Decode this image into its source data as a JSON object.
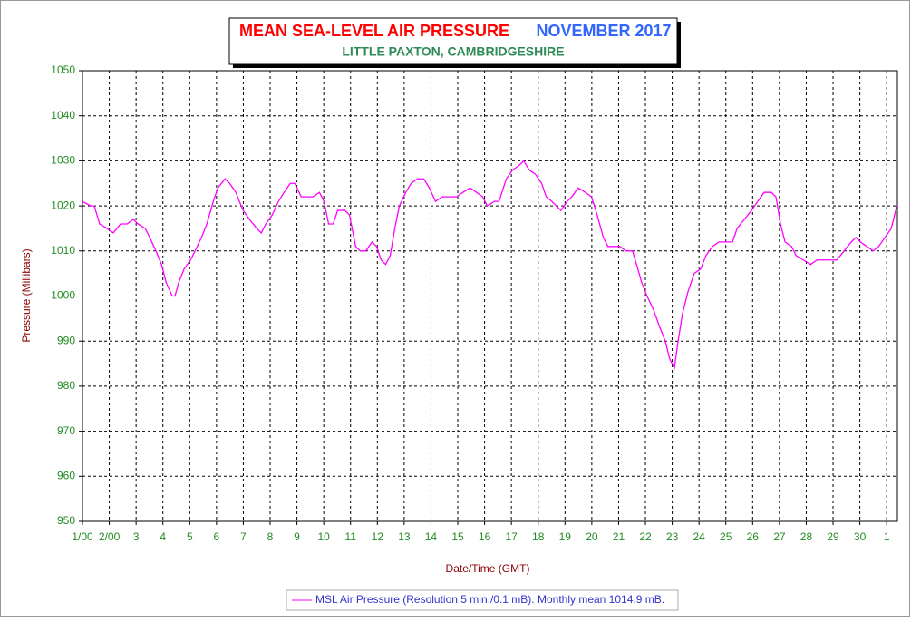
{
  "chart_data": {
    "type": "line",
    "title": "MEAN SEA-LEVEL AIR PRESSURE",
    "title_month": "NOVEMBER 2017",
    "subtitle": "LITTLE PAXTON, CAMBRIDGESHIRE",
    "x_label": "Date/Time (GMT)",
    "y_label": "Pressure (Millibars)",
    "grid": true,
    "xlim": [
      1,
      31.4
    ],
    "ylim": [
      950,
      1050
    ],
    "xticks": [
      {
        "value": 1,
        "label": "1/00"
      },
      {
        "value": 2,
        "label": "2/00"
      },
      3,
      4,
      5,
      6,
      7,
      8,
      9,
      10,
      11,
      12,
      13,
      14,
      15,
      16,
      17,
      18,
      19,
      20,
      21,
      22,
      23,
      24,
      25,
      26,
      27,
      28,
      29,
      30,
      {
        "value": 31,
        "label": "1"
      }
    ],
    "yticks": [
      950,
      960,
      970,
      980,
      990,
      1000,
      1010,
      1020,
      1030,
      1040,
      1050
    ],
    "x": [
      1.0,
      1.3,
      1.44,
      1.64,
      1.91,
      2.15,
      2.42,
      2.66,
      2.9,
      3.07,
      3.34,
      3.51,
      3.74,
      3.95,
      4.12,
      4.35,
      4.45,
      4.59,
      4.79,
      5.03,
      5.2,
      5.44,
      5.64,
      5.88,
      6.05,
      6.32,
      6.49,
      6.72,
      6.99,
      7.23,
      7.5,
      7.67,
      7.84,
      8.08,
      8.31,
      8.52,
      8.75,
      8.92,
      9.16,
      9.43,
      9.6,
      9.84,
      10.01,
      10.18,
      10.35,
      10.52,
      10.79,
      10.96,
      11.19,
      11.36,
      11.57,
      11.8,
      11.97,
      12.14,
      12.31,
      12.48,
      12.65,
      12.82,
      13.06,
      13.26,
      13.5,
      13.73,
      13.94,
      14.17,
      14.41,
      14.68,
      14.95,
      15.19,
      15.46,
      15.7,
      15.93,
      16.1,
      16.37,
      16.54,
      16.81,
      17.05,
      17.29,
      17.46,
      17.66,
      17.9,
      18.13,
      18.3,
      18.51,
      18.68,
      18.85,
      19.08,
      19.25,
      19.49,
      19.76,
      19.99,
      20.2,
      20.43,
      20.6,
      20.84,
      21.04,
      21.28,
      21.52,
      21.72,
      21.86,
      22.06,
      22.3,
      22.54,
      22.74,
      22.91,
      23.08,
      23.22,
      23.38,
      23.59,
      23.82,
      24.06,
      24.26,
      24.5,
      24.74,
      25.01,
      25.25,
      25.42,
      25.69,
      25.96,
      26.19,
      26.43,
      26.7,
      26.87,
      27.04,
      27.21,
      27.45,
      27.62,
      27.89,
      28.16,
      28.4,
      28.63,
      28.9,
      29.14,
      29.41,
      29.68,
      29.85,
      30.02,
      30.26,
      30.5,
      30.7,
      30.94,
      31.17,
      31.38
    ],
    "series": [
      {
        "name": "MSL Air Pressure (Resolution 5 min./0.1 mB). Monthly mean 1014.9 mB.",
        "color": "#ff00ff",
        "values": [
          1021,
          1020,
          1020,
          1016,
          1015,
          1014,
          1016,
          1016,
          1017,
          1016,
          1015,
          1013,
          1010,
          1007,
          1003,
          1000,
          1000,
          1003,
          1006,
          1008,
          1010,
          1013,
          1016,
          1021,
          1024,
          1026,
          1025,
          1023,
          1019,
          1017,
          1015,
          1014,
          1016,
          1018,
          1021,
          1023,
          1025,
          1025,
          1022,
          1022,
          1022,
          1023,
          1021,
          1016,
          1016,
          1019,
          1019,
          1018,
          1011,
          1010,
          1010,
          1012,
          1011,
          1008,
          1007,
          1009,
          1015,
          1020,
          1023,
          1025,
          1026,
          1026,
          1024,
          1021,
          1022,
          1022,
          1022,
          1023,
          1024,
          1023,
          1022,
          1020,
          1021,
          1021,
          1026,
          1028,
          1029,
          1030,
          1028,
          1027,
          1025,
          1022,
          1021,
          1020,
          1019,
          1021,
          1022,
          1024,
          1023,
          1022,
          1018,
          1013,
          1011,
          1011,
          1011,
          1010,
          1010,
          1006,
          1003,
          1000,
          997,
          993,
          990,
          986,
          984,
          990,
          996,
          1001,
          1005,
          1006,
          1009,
          1011,
          1012,
          1012,
          1012,
          1015,
          1017,
          1019,
          1021,
          1023,
          1023,
          1022,
          1016,
          1012,
          1011,
          1009,
          1008,
          1007,
          1008,
          1008,
          1008,
          1008,
          1010,
          1012,
          1013,
          1012,
          1011,
          1010,
          1011,
          1013,
          1015,
          1020
        ]
      }
    ]
  }
}
